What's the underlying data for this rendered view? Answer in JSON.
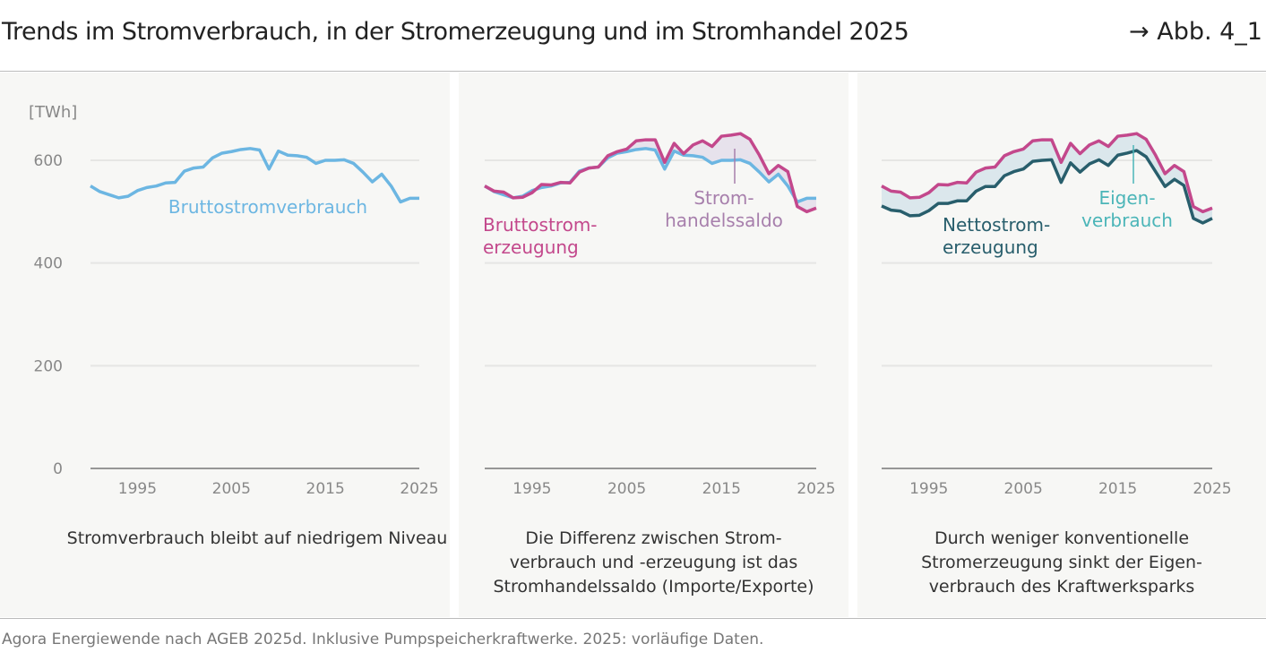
{
  "header": {
    "title": "Trends im Stromverbrauch, in der Stromerzeugung und im Stromhandel 2025",
    "ref": "→ Abb. 4_1"
  },
  "footer": {
    "source": "Agora Energiewende nach AGEB 2025d. Inklusive Pumpspeicherkraftwerke. 2025: vorläufige Daten."
  },
  "colors": {
    "verbrauch": "#6cb6e2",
    "erzeugung": "#c3488c",
    "netto": "#285e6c",
    "saldo_label": "#a77fac",
    "eigen_label": "#4bb5b8",
    "saldo_fill": "#e7e2ec",
    "eigen_fill": "#dbe7ec"
  },
  "chart_data": [
    {
      "type": "line",
      "ylabel": "[TWh]",
      "ylim": [
        0,
        650
      ],
      "yticks": [
        "0",
        "200",
        "400",
        "600"
      ],
      "xlim": [
        1990,
        2025
      ],
      "xticks": [
        "1995",
        "2005",
        "2015",
        "2025"
      ],
      "grid": true,
      "caption": "Stromverbrauch bleibt auf niedrigem Niveau",
      "years": [
        1990,
        1991,
        1992,
        1993,
        1994,
        1995,
        1996,
        1997,
        1998,
        1999,
        2000,
        2001,
        2002,
        2003,
        2004,
        2005,
        2006,
        2007,
        2008,
        2009,
        2010,
        2011,
        2012,
        2013,
        2014,
        2015,
        2016,
        2017,
        2018,
        2019,
        2020,
        2021,
        2022,
        2023,
        2024,
        2025
      ],
      "series": [
        {
          "name": "Bruttostromverbrauch",
          "key": "verbrauch",
          "values": [
            550,
            539,
            533,
            527,
            530,
            541,
            547,
            550,
            556,
            557,
            579,
            585,
            587,
            605,
            614,
            617,
            621,
            623,
            620,
            583,
            618,
            610,
            609,
            606,
            594,
            600,
            600,
            601,
            594,
            577,
            558,
            573,
            550,
            519,
            526,
            526
          ]
        }
      ]
    },
    {
      "type": "area",
      "ylim": [
        0,
        650
      ],
      "xlim": [
        1990,
        2025
      ],
      "xticks": [
        "1995",
        "2005",
        "2015",
        "2025"
      ],
      "grid": true,
      "caption": "Die Differenz zwischen Strom-verbrauch und -erzeugung ist das Stromhandelssaldo (Importe/Exporte)",
      "caption_lines": [
        "Die Differenz zwischen Strom-",
        "verbrauch und -erzeugung ist das",
        "Stromhandelssaldo (Importe/Exporte)"
      ],
      "series": [
        {
          "name": "Brutto­strom-erzeugung",
          "label_lines": [
            "Bruttostrom-",
            "erzeugung"
          ],
          "key": "erzeugung",
          "values": [
            550,
            540,
            538,
            527,
            528,
            537,
            553,
            552,
            557,
            556,
            577,
            585,
            587,
            609,
            617,
            622,
            638,
            640,
            640,
            596,
            633,
            613,
            630,
            638,
            627,
            647,
            649,
            652,
            641,
            610,
            574,
            590,
            578,
            510,
            500,
            507
          ]
        },
        {
          "name": "Bruttostromverbrauch",
          "key": "verbrauch",
          "values": [
            550,
            539,
            533,
            527,
            530,
            541,
            547,
            550,
            556,
            557,
            579,
            585,
            587,
            605,
            614,
            617,
            621,
            623,
            620,
            583,
            618,
            610,
            609,
            606,
            594,
            600,
            600,
            601,
            594,
            577,
            558,
            573,
            550,
            519,
            526,
            526
          ]
        }
      ],
      "annotation": {
        "label_lines": [
          "Strom-",
          "handelssaldo"
        ]
      }
    },
    {
      "type": "area",
      "ylim": [
        0,
        650
      ],
      "xlim": [
        1990,
        2025
      ],
      "xticks": [
        "1995",
        "2005",
        "2015",
        "2025"
      ],
      "grid": true,
      "caption_lines": [
        "Durch weniger konventionelle",
        "Stromerzeugung sinkt der Eigen-",
        "verbrauch des Kraftwerksparks"
      ],
      "series": [
        {
          "name": "Bruttostromerzeugung",
          "key": "erzeugung",
          "values": [
            550,
            540,
            538,
            527,
            528,
            537,
            553,
            552,
            557,
            556,
            577,
            585,
            587,
            609,
            617,
            622,
            638,
            640,
            640,
            596,
            633,
            613,
            630,
            638,
            627,
            647,
            649,
            652,
            641,
            610,
            574,
            590,
            578,
            510,
            500,
            507
          ]
        },
        {
          "name": "Nettostromerzeugung",
          "label_lines": [
            "Nettostrom-",
            "erzeugung"
          ],
          "key": "netto",
          "values": [
            511,
            503,
            501,
            492,
            493,
            502,
            516,
            516,
            521,
            521,
            540,
            549,
            549,
            570,
            578,
            583,
            598,
            600,
            601,
            557,
            595,
            577,
            593,
            601,
            590,
            610,
            614,
            619,
            607,
            578,
            549,
            563,
            551,
            487,
            478,
            487
          ]
        }
      ],
      "annotation": {
        "label_lines": [
          "Eigen-",
          "verbrauch"
        ]
      }
    }
  ]
}
